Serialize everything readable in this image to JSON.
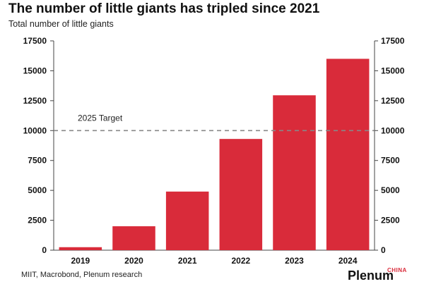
{
  "chart_data": {
    "type": "bar",
    "title": "The number of little giants has tripled since 2021",
    "subtitle": "Total number of little giants",
    "categories": [
      "2019",
      "2020",
      "2021",
      "2022",
      "2023",
      "2024"
    ],
    "values": [
      250,
      2000,
      4900,
      9300,
      12950,
      16000
    ],
    "ylim": [
      0,
      17500
    ],
    "yticks": [
      0,
      2500,
      5000,
      7500,
      10000,
      12500,
      15000,
      17500
    ],
    "ytick_labels_both_sides": true,
    "grid": false,
    "reference_line": {
      "value": 10000,
      "label": "2025 Target",
      "style": "dashed"
    },
    "bar_color": "#d92b3a"
  },
  "source": "MIIT, Macrobond, Plenum research",
  "logo": {
    "main": "Plenum",
    "sub": "CHINA"
  },
  "colors": {
    "bar": "#d92b3a",
    "target_line": "#888888",
    "axis": "#444444"
  }
}
